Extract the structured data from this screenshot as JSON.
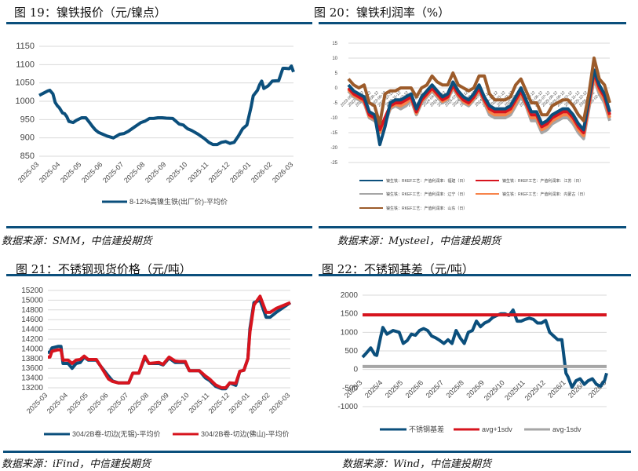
{
  "figures": [
    {
      "title": "图 19：镍铁报价（元/镍点）",
      "source": "数据来源：SMM，中信建投期货"
    },
    {
      "title": "图 20：镍铁利润率（%）",
      "source": "数据来源：Mysteel，中信建投期货"
    },
    {
      "title": "图 21：不锈钢现货价格（元/吨）",
      "source": "数据来源：iFind，中信建投期货"
    },
    {
      "title": "图 22：不锈钢基差（元/吨）",
      "source": "数据来源：Wind，中信建投期货"
    }
  ],
  "colors": {
    "rule": "#0b4f7c",
    "navy": "#0b4f7c",
    "red": "#d7141e",
    "gray": "#a6a6a6",
    "orange": "#f7844a",
    "brown": "#9c5b2a",
    "grid": "#d9d9d9"
  },
  "chart_data": [
    {
      "type": "line",
      "title": "镍铁报价（元/镍点）",
      "xlabel": "",
      "ylabel": "",
      "ylim": [
        850,
        1150
      ],
      "yticks": [
        850,
        900,
        950,
        1000,
        1050,
        1100,
        1150
      ],
      "categories": [
        "2025-03",
        "2025-04",
        "2025-05",
        "2025-06",
        "2025-07",
        "2025-08",
        "2025-09",
        "2025-10",
        "2025-11",
        "2025-12",
        "2026-01",
        "2026-02",
        "2026-03"
      ],
      "grid": true,
      "legend_position": "bottom",
      "series": [
        {
          "name": "8-12%高镍生铁(出厂价)-平均价",
          "color": "#0b4f7c",
          "x": [
            0,
            0.2,
            0.4,
            0.5,
            0.65,
            0.75,
            0.85,
            0.95,
            1.1,
            1.2,
            1.3,
            1.4,
            1.6,
            1.75,
            2.0,
            2.2,
            2.4,
            2.5,
            2.65,
            2.8,
            3.0,
            3.2,
            3.5,
            3.8,
            4.0,
            4.2,
            4.5,
            4.8,
            5.0,
            5.2,
            5.4,
            5.6,
            5.8,
            6.0,
            6.3,
            6.6,
            6.8,
            6.9,
            7.0,
            7.2,
            7.5,
            7.8,
            8.0,
            8.2,
            8.4,
            8.6,
            8.8,
            9.0,
            9.2,
            9.4,
            9.6,
            9.8,
            9.9,
            10.0,
            10.1,
            10.3,
            10.4,
            10.5,
            10.6,
            10.8,
            11.0,
            11.2,
            11.3,
            11.5,
            11.6,
            11.8,
            11.9,
            12.0
          ],
          "values": [
            1016,
            1022,
            1028,
            1030,
            1020,
            997,
            988,
            982,
            968,
            966,
            958,
            945,
            942,
            948,
            955,
            955,
            940,
            932,
            922,
            915,
            910,
            905,
            900,
            910,
            912,
            918,
            930,
            942,
            946,
            953,
            953,
            955,
            955,
            954,
            953,
            938,
            935,
            930,
            925,
            920,
            910,
            898,
            888,
            882,
            882,
            888,
            890,
            885,
            888,
            905,
            925,
            935,
            960,
            985,
            1015,
            1030,
            1045,
            1055,
            1035,
            1042,
            1055,
            1056,
            1056,
            1090,
            1090,
            1089,
            1096,
            1080
          ]
        }
      ]
    },
    {
      "type": "line",
      "title": "镍铁利润率（%）",
      "xlabel": "",
      "ylabel": "",
      "ylim": [
        -25,
        15
      ],
      "yticks": [
        -25,
        -20,
        -15,
        -10,
        -5,
        0,
        5,
        10,
        15
      ],
      "categories": [
        "2023-05-12",
        "2023-06-12",
        "2023-07-12",
        "2023-08-12",
        "2023-09-12",
        "2023-10-12",
        "2023-11-12",
        "2023-12-12",
        "2024-01-12",
        "2024-02-12",
        "2024-03-12",
        "2024-04-12",
        "2024-05-12",
        "2024-06-12",
        "2024-07-12",
        "2024-08-12",
        "2024-09-12",
        "2024-10-12",
        "2024-11-12",
        "2024-12-12",
        "2025-01-12",
        "2025-02-12",
        "2025-03-12",
        "2025-04-12",
        "2025-05-12",
        "2025-06-12",
        "2025-07-12",
        "2025-08-12",
        "2025-09-12",
        "2025-10-12",
        "2025-11-12",
        "2025-12-12",
        "2026-01-12",
        "2026-02-12"
      ],
      "grid": true,
      "legend_position": "bottom",
      "base_x": [
        0,
        2,
        4,
        6,
        8,
        10,
        12,
        14,
        16,
        18,
        20,
        22,
        24,
        26,
        28,
        30,
        32,
        34,
        36,
        38,
        40,
        42,
        44,
        46,
        48,
        50,
        52,
        54,
        56,
        58,
        60,
        62,
        64,
        66,
        68,
        70,
        72,
        74,
        76,
        78,
        80,
        82,
        84,
        86,
        88,
        90,
        92,
        94,
        96,
        98,
        100
      ],
      "series": [
        {
          "name": "镍生铁：RKEF工艺：产值利润率：福建（日）",
          "color": "#0b4f7c",
          "values": [
            1,
            -1,
            -2,
            -3,
            -8,
            -9,
            -19,
            -13,
            -5,
            -4,
            -4,
            -3,
            -2,
            -7,
            -3,
            -1,
            1,
            -1,
            -3,
            -2,
            2,
            -1,
            -3,
            -4,
            -2,
            1,
            -3,
            -6,
            -7,
            -7,
            -7,
            -6,
            -3,
            0,
            -4,
            -8,
            -8,
            -12,
            -11,
            -9,
            -8,
            -7,
            -7,
            -9,
            -12,
            -14,
            -4,
            6,
            1,
            -2,
            -8
          ]
        },
        {
          "name": "镍生铁：RKEF工艺：产值利润率：江苏（日）",
          "color": "#d7141e",
          "values": [
            0,
            -2,
            -3,
            -4,
            -9,
            -10,
            -14,
            -10,
            -6,
            -5,
            -5,
            -4,
            -3,
            -8,
            -4,
            -2,
            0,
            -2,
            -4,
            -3,
            1,
            -2,
            -4,
            -5,
            -3,
            0,
            -4,
            -7,
            -8,
            -8,
            -8,
            -7,
            -4,
            -1,
            -5,
            -9,
            -9,
            -13,
            -12,
            -10,
            -9,
            -8,
            -8,
            -10,
            -13,
            -15,
            -5,
            5,
            0,
            -3,
            -9
          ]
        },
        {
          "name": "镍生铁：RKEF工艺：产值利润率：辽宁（日）",
          "color": "#a6a6a6",
          "values": [
            -1,
            -3,
            -4,
            -5,
            -10,
            -11,
            -13,
            -12,
            -7,
            -6,
            -7,
            -6,
            -4,
            -9,
            -5,
            -3,
            -1,
            -3,
            -5,
            -4,
            0,
            -3,
            -5,
            -6,
            -4,
            -1,
            -5,
            -9,
            -10,
            -10,
            -10,
            -9,
            -6,
            -3,
            -6,
            -11,
            -11,
            -15,
            -14,
            -12,
            -11,
            -10,
            -10,
            -12,
            -15,
            -17,
            -7,
            3,
            -2,
            -5,
            -11
          ]
        },
        {
          "name": "镍生铁：RKEF工艺：产值利润率：内蒙古（日）",
          "color": "#f7844a",
          "values": [
            -0.5,
            -2.5,
            -3.5,
            -4.5,
            -9.5,
            -10.5,
            -15,
            -11,
            -6.5,
            -5.5,
            -6,
            -5,
            -3.5,
            -8.5,
            -4.5,
            -2.5,
            -0.5,
            -2.5,
            -4.5,
            -3.5,
            0.5,
            -2.5,
            -4.5,
            -5.5,
            -3.5,
            -0.5,
            -4.5,
            -8,
            -9,
            -9,
            -9,
            -8,
            -5,
            -2,
            -5.5,
            -10,
            -10,
            -14,
            -13,
            -11,
            -10,
            -9,
            -9,
            -11,
            -14,
            -16,
            -6,
            4,
            -1,
            -4,
            -10
          ]
        },
        {
          "name": "镍生铁：RKEF工艺：产值利润率：山东（日）",
          "color": "#9c5b2a",
          "values": [
            3,
            1,
            0,
            1,
            -5,
            -6,
            -12,
            -2,
            -1,
            -1,
            0,
            0,
            0,
            -3,
            0,
            1,
            4,
            2,
            1,
            1,
            5,
            1,
            0,
            -1,
            0,
            4,
            4,
            -2,
            -4,
            -4,
            -4,
            -3,
            1,
            3,
            -1,
            -5,
            -5,
            -9,
            -9,
            -6,
            -5,
            -4,
            -4,
            -6,
            -9,
            -11,
            -2,
            10,
            3,
            1,
            -5
          ]
        }
      ]
    },
    {
      "type": "line",
      "title": "不锈钢现货价格（元/吨）",
      "xlabel": "",
      "ylabel": "",
      "ylim": [
        13200,
        15200
      ],
      "yticks": [
        13200,
        13400,
        13600,
        13800,
        14000,
        14200,
        14400,
        14600,
        14800,
        15000,
        15200
      ],
      "categories": [
        "2025-03",
        "2025-04",
        "2025-05",
        "2025-06",
        "2025-07",
        "2025-08",
        "2025-09",
        "2025-10",
        "2025-11",
        "2025-12",
        "2026-01",
        "2026-02",
        "2026-03"
      ],
      "grid": true,
      "legend_position": "bottom",
      "series": [
        {
          "name": "304/2B卷-切边(无锡)-平均价",
          "color": "#0b4f7c",
          "x": [
            0,
            0.1,
            0.2,
            0.5,
            0.65,
            0.75,
            1.0,
            1.2,
            1.4,
            1.6,
            1.8,
            2.0,
            2.4,
            2.6,
            3.0,
            3.2,
            3.5,
            4.0,
            4.2,
            4.5,
            4.8,
            5.0,
            5.5,
            5.7,
            6.0,
            6.3,
            6.5,
            6.8,
            7.0,
            7.5,
            7.8,
            8.0,
            8.3,
            8.6,
            8.8,
            9.0,
            9.3,
            9.5,
            9.7,
            9.9,
            10.0,
            10.2,
            10.5,
            10.8,
            11.0,
            11.3,
            12.0
          ],
          "x_note": "month index from 2025-03",
          "values": [
            13930,
            13930,
            14020,
            14050,
            14050,
            13700,
            13700,
            13600,
            13700,
            13720,
            13830,
            13770,
            13770,
            13650,
            13440,
            13340,
            13300,
            13300,
            13500,
            13500,
            13820,
            13700,
            13700,
            13670,
            13810,
            13720,
            13720,
            13720,
            13550,
            13550,
            13400,
            13350,
            13230,
            13180,
            13180,
            13300,
            13250,
            13540,
            13560,
            13800,
            14420,
            14950,
            15000,
            14650,
            14650,
            14750,
            14950
          ]
        },
        {
          "name": "304/2B卷-切边(佛山)-平均价",
          "color": "#d7141e",
          "x": [
            0,
            0.1,
            0.2,
            0.5,
            0.65,
            0.75,
            1.0,
            1.2,
            1.4,
            1.6,
            1.8,
            2.0,
            2.4,
            2.6,
            3.0,
            3.2,
            3.5,
            4.0,
            4.2,
            4.5,
            4.8,
            5.0,
            5.5,
            5.7,
            6.0,
            6.3,
            6.5,
            6.8,
            7.0,
            7.5,
            7.8,
            8.0,
            8.3,
            8.6,
            8.8,
            9.0,
            9.3,
            9.5,
            9.7,
            9.9,
            10.0,
            10.2,
            10.5,
            10.8,
            11.0,
            11.3,
            12.0
          ],
          "values": [
            13830,
            13830,
            13950,
            13980,
            13980,
            13770,
            13770,
            13700,
            13770,
            13780,
            13850,
            13780,
            13780,
            13650,
            13380,
            13330,
            13300,
            13300,
            13500,
            13500,
            13850,
            13700,
            13720,
            13680,
            13830,
            13750,
            13740,
            13740,
            13550,
            13550,
            13440,
            13380,
            13260,
            13200,
            13200,
            13300,
            13290,
            13540,
            13560,
            13800,
            14350,
            14900,
            15080,
            14750,
            14750,
            14830,
            14950
          ]
        }
      ]
    },
    {
      "type": "line",
      "title": "不锈钢基差（元/吨）",
      "xlabel": "",
      "ylabel": "",
      "ylim": [
        -1000,
        2000
      ],
      "yticks": [
        -1000,
        -500,
        0,
        500,
        1000,
        1500,
        2000
      ],
      "categories": [
        "2025/3",
        "2025/4",
        "2025/5",
        "2025/6",
        "2025/7",
        "2025/8",
        "2025/9",
        "2025/10",
        "2025/11",
        "2025/12",
        "2026/1",
        "2026/2",
        "2026/3"
      ],
      "grid": true,
      "legend_position": "bottom",
      "series": [
        {
          "name": "不锈钢基差",
          "color": "#0b4f7c",
          "x": [
            0,
            0.2,
            0.4,
            0.6,
            0.7,
            0.9,
            1.0,
            1.2,
            1.5,
            1.8,
            2.0,
            2.2,
            2.4,
            2.6,
            2.8,
            3.0,
            3.2,
            3.4,
            3.6,
            3.8,
            4.0,
            4.2,
            4.4,
            4.6,
            4.8,
            5.0,
            5.2,
            5.4,
            5.6,
            5.8,
            6.0,
            6.2,
            6.4,
            6.6,
            6.8,
            7.0,
            7.2,
            7.4,
            7.6,
            7.8,
            8.0,
            8.2,
            8.4,
            8.6,
            8.8,
            9.0,
            9.2,
            9.4,
            9.6,
            9.8,
            9.9,
            10.0,
            10.1,
            10.3,
            10.5,
            10.7,
            10.9,
            11.1,
            11.3,
            11.5,
            11.7,
            11.9,
            12.0
          ],
          "values": [
            330,
            450,
            580,
            400,
            380,
            900,
            1130,
            950,
            1050,
            1000,
            700,
            780,
            950,
            920,
            1050,
            1100,
            1050,
            900,
            850,
            780,
            700,
            800,
            700,
            1050,
            850,
            700,
            1000,
            1050,
            1300,
            1150,
            1250,
            1300,
            1400,
            1450,
            1500,
            1500,
            1450,
            1600,
            1300,
            1300,
            1350,
            1380,
            1350,
            1250,
            1250,
            1320,
            1000,
            900,
            800,
            800,
            350,
            -100,
            -200,
            -480,
            -300,
            -250,
            -400,
            -300,
            -250,
            -400,
            -450,
            -300,
            -100
          ]
        },
        {
          "name": "avg+1sdv",
          "color": "#d7141e",
          "x": [
            0,
            12
          ],
          "values": [
            1470,
            1470
          ]
        },
        {
          "name": "avg-1sdv",
          "color": "#a6a6a6",
          "x": [
            0,
            12
          ],
          "values": [
            80,
            80
          ]
        }
      ]
    }
  ]
}
